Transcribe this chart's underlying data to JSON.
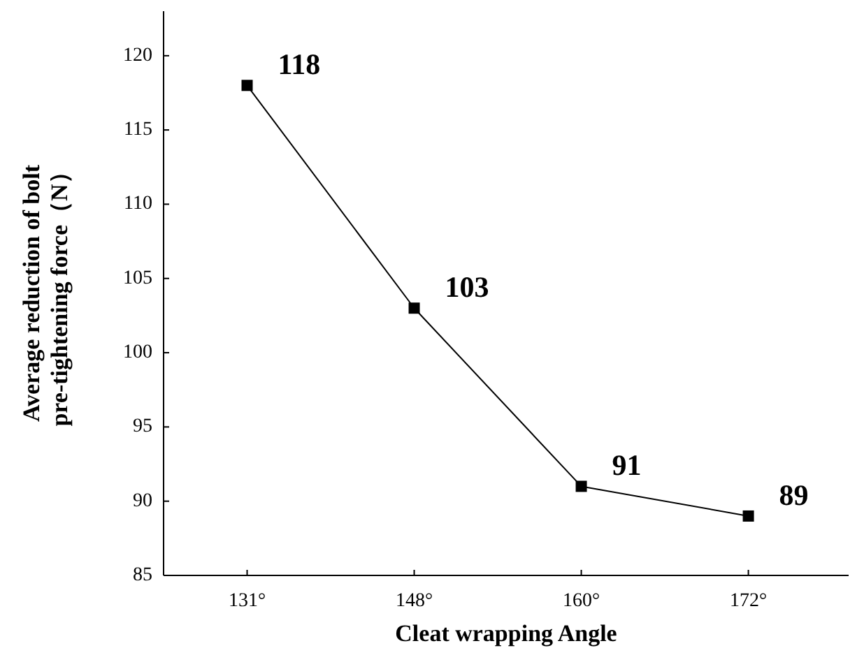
{
  "chart_data": {
    "type": "line",
    "xlabel": "Cleat wrapping Angle",
    "ylabel": "Average reduction of bolt\npre-tightening force（N）",
    "categories": [
      "131°",
      "148°",
      "160°",
      "172°"
    ],
    "series": [
      {
        "color": "#000000",
        "values": [
          118,
          103,
          91,
          89
        ]
      }
    ],
    "ylim": [
      85,
      123
    ],
    "yticks": [
      85,
      90,
      95,
      100,
      105,
      110,
      115,
      120
    ],
    "marker": "square",
    "line_style": "solid",
    "data_labels": true
  }
}
